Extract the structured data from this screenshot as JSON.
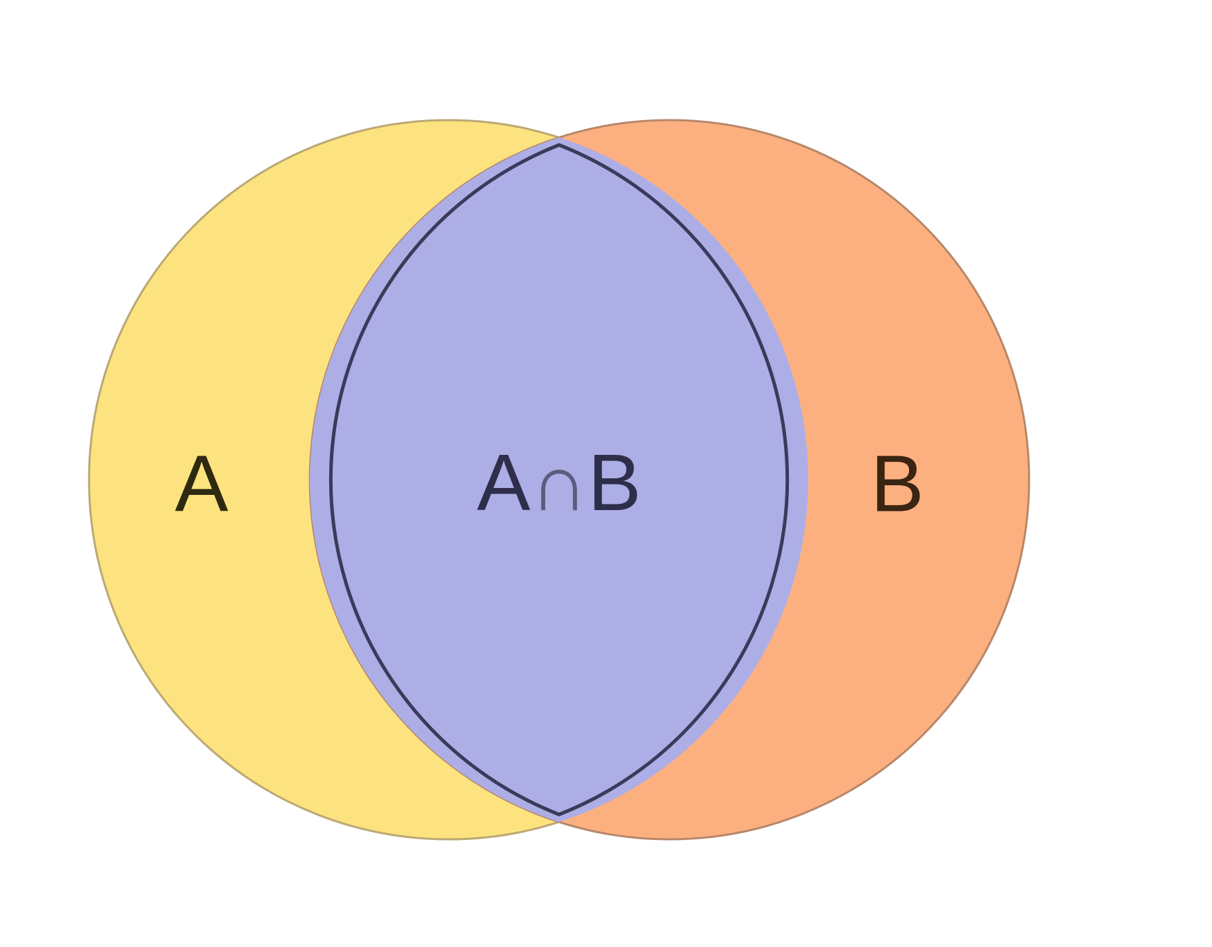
{
  "diagram": {
    "type": "venn",
    "sets": [
      {
        "id": "A",
        "label": "A",
        "fill": "#FCE37F",
        "stroke": "#BBA874",
        "text_color": "#2E2A10"
      },
      {
        "id": "B",
        "label": "B",
        "fill": "#FDB07F",
        "stroke": "#B7876A",
        "text_color": "#3A2412"
      }
    ],
    "intersection": {
      "sets": [
        "A",
        "B"
      ],
      "label_left": "A",
      "label_symbol": "∩",
      "label_right": "B",
      "fill": "#ADAEE6",
      "stroke": "#3B3A5A",
      "text_color": "#2F2E4A",
      "symbol_color": "#5B5C7E"
    }
  }
}
